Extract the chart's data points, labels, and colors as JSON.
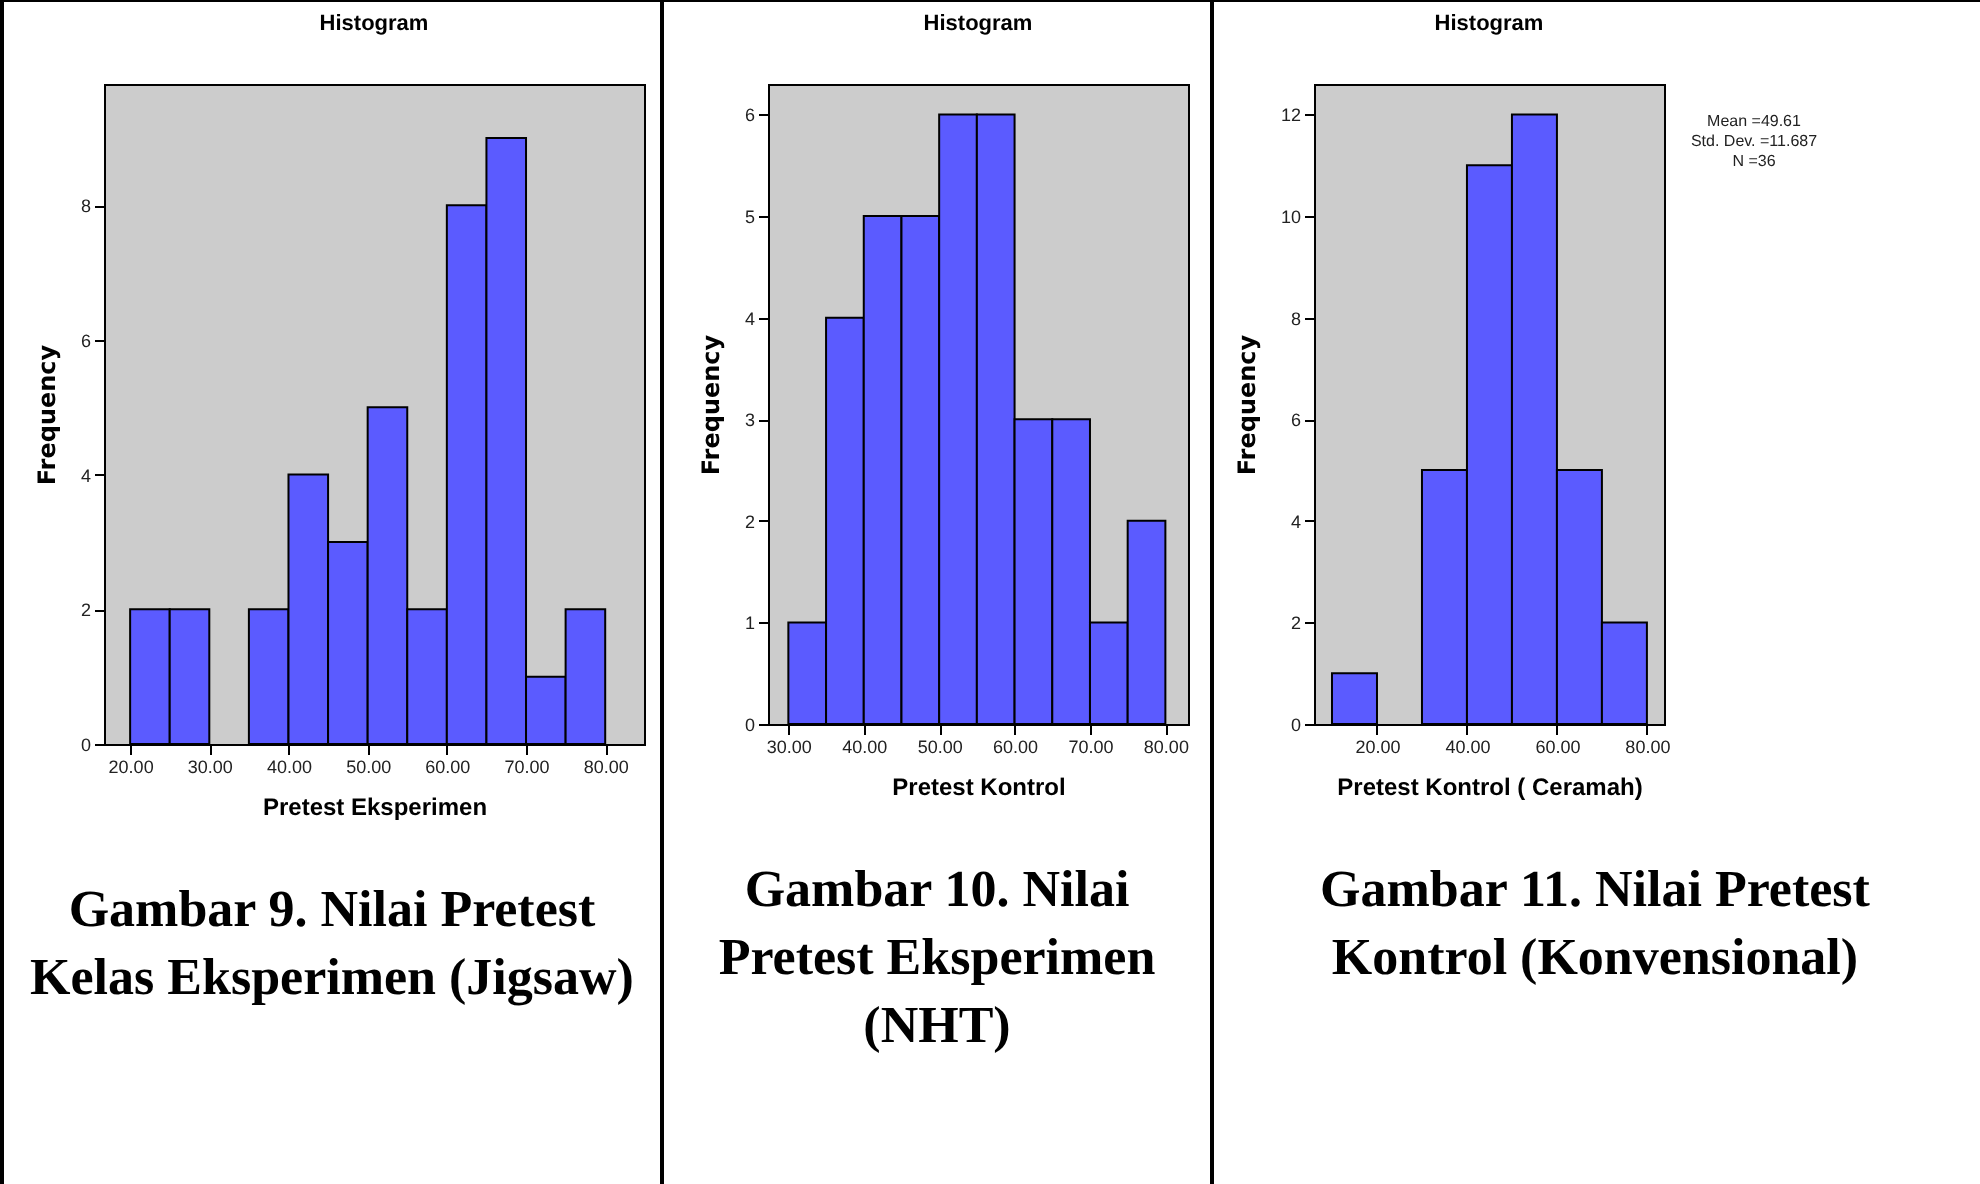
{
  "chart_data": [
    {
      "type": "histogram",
      "title": "Histogram",
      "xlabel": "Pretest Eksperimen",
      "ylabel": "Frequency",
      "bins": [
        20,
        25,
        30,
        35,
        40,
        45,
        50,
        55,
        60,
        65,
        70,
        75,
        80
      ],
      "values": [
        2,
        2,
        0,
        2,
        4,
        3,
        5,
        2,
        8,
        9,
        1,
        2
      ],
      "color": "#5b5bff",
      "xlim": [
        16.7,
        84.9
      ],
      "ylim": [
        0,
        9.8
      ],
      "xticks": [
        {
          "value": 20,
          "label": "20.00"
        },
        {
          "value": 30,
          "label": "30.00"
        },
        {
          "value": 40,
          "label": "40.00"
        },
        {
          "value": 50,
          "label": "50.00"
        },
        {
          "value": 60,
          "label": "60.00"
        },
        {
          "value": 70,
          "label": "70.00"
        },
        {
          "value": 80,
          "label": "80.00"
        }
      ],
      "yticks": [
        0,
        2,
        4,
        6,
        8
      ],
      "grid": false,
      "annotations": [
        "Gambar 9. Nilai Pretest Kelas Eksperimen (Jigsaw)"
      ]
    },
    {
      "type": "histogram",
      "title": "Histogram",
      "xlabel": "Pretest Kontrol",
      "ylabel": "Frequency",
      "bins": [
        30,
        35,
        40,
        45,
        50,
        55,
        60,
        65,
        70,
        75,
        80
      ],
      "values": [
        1,
        4,
        5,
        5,
        6,
        6,
        3,
        3,
        1,
        2
      ],
      "color": "#5b5bff",
      "xlim": [
        27.3,
        83
      ],
      "ylim": [
        0,
        6.3
      ],
      "xticks": [
        {
          "value": 30,
          "label": "30.00"
        },
        {
          "value": 40,
          "label": "40.00"
        },
        {
          "value": 50,
          "label": "50.00"
        },
        {
          "value": 60,
          "label": "60.00"
        },
        {
          "value": 70,
          "label": "70.00"
        },
        {
          "value": 80,
          "label": "80.00"
        }
      ],
      "yticks": [
        0,
        1,
        2,
        3,
        4,
        5,
        6
      ],
      "grid": false,
      "annotations": [
        "Gambar 10. Nilai Pretest Eksperimen (NHT)"
      ]
    },
    {
      "type": "histogram",
      "title": "Histogram",
      "xlabel": "Pretest Kontrol ( Ceramah)",
      "ylabel": "Frequency",
      "bins": [
        10,
        20,
        30,
        40,
        50,
        60,
        70,
        80
      ],
      "values": [
        1,
        0,
        5,
        11,
        12,
        5,
        2
      ],
      "color": "#5b5bff",
      "xlim": [
        6,
        83.8
      ],
      "ylim": [
        0,
        12.6
      ],
      "xticks": [
        {
          "value": 20,
          "label": "20.00"
        },
        {
          "value": 40,
          "label": "40.00"
        },
        {
          "value": 60,
          "label": "60.00"
        },
        {
          "value": 80,
          "label": "80.00"
        }
      ],
      "yticks": [
        0,
        2,
        4,
        6,
        8,
        10,
        12
      ],
      "grid": false,
      "annotations": [
        "Mean =49.61",
        "Std. Dev. =11.687",
        "N =36",
        "Gambar 11. Nilai Pretest Kontrol (Konvensional)"
      ]
    }
  ]
}
